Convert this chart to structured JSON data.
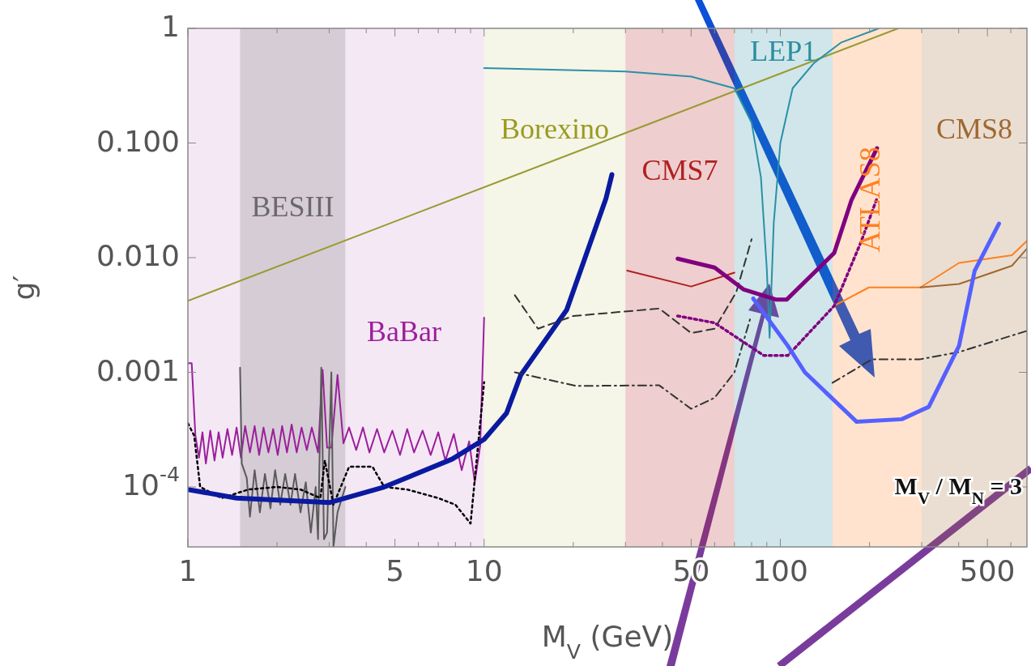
{
  "chart_data": {
    "type": "line",
    "xlabel": "M$_{V}$ (GeV)",
    "ylabel": "g′",
    "log": "xy",
    "grid": false,
    "xlim": [
      1,
      680
    ],
    "ylim": [
      3e-05,
      1
    ],
    "xticks": [
      1,
      {
        "value": 2,
        "label": null
      },
      {
        "value": 3,
        "label": null
      },
      {
        "value": 4,
        "label": null
      },
      5,
      {
        "value": 6,
        "label": null
      },
      {
        "value": 7,
        "label": null
      },
      {
        "value": 8,
        "label": null
      },
      {
        "value": 9,
        "label": null
      },
      10,
      {
        "value": 20,
        "label": null
      },
      {
        "value": 30,
        "label": null
      },
      {
        "value": 40,
        "label": null
      },
      50,
      {
        "value": 60,
        "label": null
      },
      {
        "value": 70,
        "label": null
      },
      {
        "value": 80,
        "label": null
      },
      {
        "value": 90,
        "label": null
      },
      100,
      {
        "value": 200,
        "label": null
      },
      {
        "value": 300,
        "label": null
      },
      {
        "value": 400,
        "label": null
      },
      500,
      {
        "value": 600,
        "label": null
      }
    ],
    "yticks": [
      {
        "value": 0.0001,
        "label": "10$^{-4}$"
      },
      {
        "value": 0.001,
        "label": "0.001"
      },
      {
        "value": 0.01,
        "label": "0.010"
      },
      {
        "value": 0.1,
        "label": "0.100"
      },
      1
    ],
    "bands": [
      {
        "axis": "x",
        "from": 1,
        "to": 10,
        "label": "BaBar",
        "color": "#9b1f9b"
      },
      {
        "axis": "x",
        "from": 1.5,
        "to": 3.4,
        "label": "BESIII",
        "color": "#6a6a6a"
      },
      {
        "axis": "x",
        "from": 10,
        "to": 30,
        "label": "Borexino",
        "color": "#9a9a20"
      },
      {
        "axis": "x",
        "from": 30,
        "to": 70,
        "label": "CMS7",
        "color": "#b02020"
      },
      {
        "axis": "x",
        "from": 70,
        "to": 150,
        "label": "LEP1",
        "color": "#2a8ea0"
      },
      {
        "axis": "x",
        "from": 150,
        "to": 300,
        "label": "ATLAS8",
        "color": "#ff8020"
      },
      {
        "axis": "x",
        "from": 300,
        "to": 680,
        "label": "CMS8",
        "color": "#a06830"
      }
    ],
    "annotations": [
      "M$_{V}$ / M$_{N}$ = 3"
    ],
    "series": [
      {
        "color": "#9a9a30",
        "x": [
          1,
          250
        ],
        "values": [
          0.0042,
          1
        ]
      },
      {
        "color": "#2a90a8",
        "x": [
          10,
          30,
          50,
          70,
          80,
          86,
          90,
          92,
          95,
          100,
          110,
          130,
          160,
          215
        ],
        "values": [
          0.45,
          0.42,
          0.38,
          0.3,
          0.15,
          0.05,
          0.008,
          0.002,
          0.02,
          0.1,
          0.3,
          0.5,
          0.75,
          1
        ]
      },
      {
        "color": "#b02020",
        "x": [
          30.4,
          50,
          70
        ],
        "values": [
          0.0077,
          0.0056,
          0.0074
        ]
      },
      {
        "color": "#ff8020",
        "x": [
          152,
          199,
          297,
          401,
          605,
          680
        ],
        "values": [
          0.0038,
          0.0055,
          0.0055,
          0.009,
          0.0105,
          0.014
        ]
      },
      {
        "color": "#a06830",
        "x": [
          297,
          401,
          605,
          680
        ],
        "values": [
          0.0055,
          0.0059,
          0.0085,
          0.012
        ]
      },
      {
        "color": "#9b1f9b",
        "x": [
          1,
          1.03,
          1.06,
          1.09,
          1.12,
          1.15,
          1.19,
          1.23,
          1.27,
          1.31,
          1.36,
          1.41,
          1.46,
          1.51,
          1.56,
          1.62,
          1.68,
          1.74,
          1.8,
          1.87,
          1.94,
          2.01,
          2.08,
          2.16,
          2.24,
          2.33,
          2.42,
          2.52,
          2.62,
          2.75,
          2.85,
          2.95,
          3.05,
          3.2,
          3.35,
          3.5,
          3.7,
          3.9,
          4.1,
          4.35,
          4.6,
          4.9,
          5.2,
          5.5,
          5.8,
          6.2,
          6.6,
          7,
          7.4,
          7.9,
          8.4,
          8.9,
          9.3,
          9.7,
          10
        ],
        "values": [
          0.0012,
          0.0012,
          0.00028,
          0.00018,
          0.0003,
          0.00016,
          0.00031,
          0.00017,
          0.0003,
          0.00018,
          0.00032,
          0.00019,
          0.00033,
          0.00018,
          0.00034,
          0.0002,
          0.00034,
          0.00019,
          0.00033,
          0.0002,
          0.00032,
          0.00019,
          0.00034,
          0.0002,
          0.00035,
          0.0002,
          0.00033,
          0.00021,
          0.00033,
          0.0002,
          0.00105,
          0.00022,
          0.00022,
          0.00095,
          0.00024,
          0.00033,
          0.00021,
          0.00033,
          0.0002,
          0.00032,
          0.0002,
          0.00031,
          0.00019,
          0.00032,
          0.0002,
          0.00031,
          0.00019,
          0.0003,
          0.00017,
          0.00029,
          0.00014,
          0.00025,
          0.00011,
          0.00023,
          0.003
        ]
      },
      {
        "color": "#5a5a5a",
        "x": [
          1.5,
          1.52,
          1.58,
          1.62,
          1.68,
          1.75,
          1.82,
          1.9,
          1.97,
          2.05,
          2.13,
          2.22,
          2.3,
          2.4,
          2.5,
          2.6,
          2.7,
          2.75,
          2.82,
          2.88,
          2.95,
          3.05,
          3.1,
          3.2,
          3.4
        ],
        "values": [
          0.0011,
          0.00016,
          0.00012,
          5.5e-05,
          0.00014,
          6e-05,
          0.00013,
          6.5e-05,
          0.00014,
          7e-05,
          0.00013,
          7e-05,
          0.00013,
          6e-05,
          0.00011,
          4e-05,
          0.0001,
          3.5e-05,
          0.0011,
          3.5e-05,
          4e-05,
          0.001,
          3e-05,
          6e-05,
          0.0001
        ]
      },
      {
        "color": "#000000",
        "line_style": "dotted",
        "x": [
          1,
          1.05,
          1.1,
          1.3,
          1.6,
          2,
          2.4,
          2.8,
          2.9,
          3.1,
          3.5,
          4.2,
          4.6,
          5.5,
          7,
          8,
          9,
          10
        ],
        "values": [
          0.00036,
          0.00028,
          0.0001,
          8e-05,
          9.5e-05,
          0.0001,
          9.5e-05,
          8e-05,
          0.00017,
          7e-05,
          0.00015,
          0.00015,
          0.0001,
          9.5e-05,
          8e-05,
          7e-05,
          4.8e-05,
          0.00082
        ]
      },
      {
        "color": "#0a1aa0",
        "x": [
          1,
          1.46,
          3,
          4.6,
          7.8,
          10,
          11.9,
          13.3,
          19,
          25.8,
          27
        ],
        "values": [
          9.5e-05,
          8e-05,
          7.3e-05,
          0.0001,
          0.000175,
          0.00026,
          0.00044,
          0.00095,
          0.0035,
          0.033,
          0.053
        ]
      },
      {
        "color": "#333333",
        "line_style": "dashed",
        "x": [
          12.7,
          15.2,
          20,
          39,
          50,
          60,
          71,
          80
        ],
        "values": [
          0.0047,
          0.0024,
          0.0031,
          0.0036,
          0.0022,
          0.0024,
          0.005,
          0.0145
        ]
      },
      {
        "color": "#333333",
        "line_style": "dashdot",
        "x": [
          12.7,
          20.5,
          39,
          50,
          60,
          70,
          79
        ],
        "values": [
          0.001,
          0.00076,
          0.00077,
          0.00048,
          0.0006,
          0.001,
          0.0029
        ]
      },
      {
        "color": "#333333",
        "line_style": "dashdot",
        "x": [
          150,
          204,
          297,
          401,
          680
        ],
        "values": [
          0.00081,
          0.0013,
          0.0013,
          0.0015,
          0.0023
        ]
      },
      {
        "color": "#800080",
        "x": [
          45,
          60,
          75,
          97,
          105,
          152,
          174,
          212
        ],
        "values": [
          0.0098,
          0.0082,
          0.0053,
          0.0043,
          0.0043,
          0.011,
          0.032,
          0.09
        ]
      },
      {
        "color": "#800080",
        "line_style": "dotted",
        "x": [
          45,
          60,
          88,
          106,
          152,
          187,
          212
        ],
        "values": [
          0.0031,
          0.0027,
          0.0014,
          0.0014,
          0.0038,
          0.0136,
          0.033
        ]
      },
      {
        "color": "#5560ff",
        "x": [
          81,
          106,
          121,
          181,
          257,
          317,
          401,
          453,
          547
        ],
        "values": [
          0.0044,
          0.0017,
          0.001,
          0.00037,
          0.00039,
          0.0005,
          0.0017,
          0.0077,
          0.0198
        ]
      }
    ]
  }
}
